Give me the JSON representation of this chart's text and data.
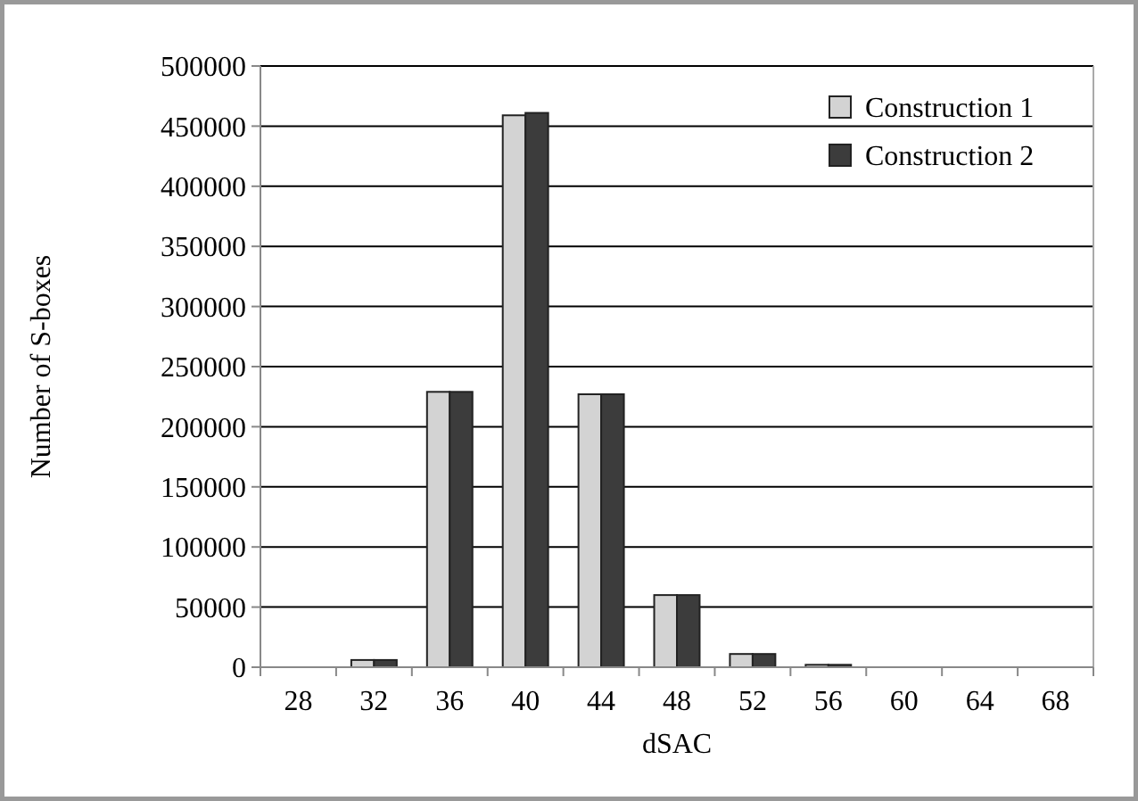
{
  "chart_data": {
    "type": "bar",
    "xlabel": "dSAC",
    "ylabel": "Number of S-boxes",
    "categories": [
      "28",
      "32",
      "36",
      "40",
      "44",
      "48",
      "52",
      "56",
      "60",
      "64",
      "68"
    ],
    "series": [
      {
        "name": "Construction 1",
        "color": "#d3d3d3",
        "values": [
          0,
          6000,
          229000,
          459000,
          227000,
          60000,
          11000,
          2000,
          0,
          0,
          0
        ]
      },
      {
        "name": "Construction 2",
        "color": "#3c3c3c",
        "values": [
          0,
          6000,
          229000,
          461000,
          227000,
          60000,
          11000,
          2000,
          0,
          0,
          0
        ]
      }
    ],
    "ylim": [
      0,
      500000
    ],
    "yticks": [
      0,
      50000,
      100000,
      150000,
      200000,
      250000,
      300000,
      350000,
      400000,
      450000,
      500000
    ],
    "grid": "y",
    "legend": "top right"
  }
}
